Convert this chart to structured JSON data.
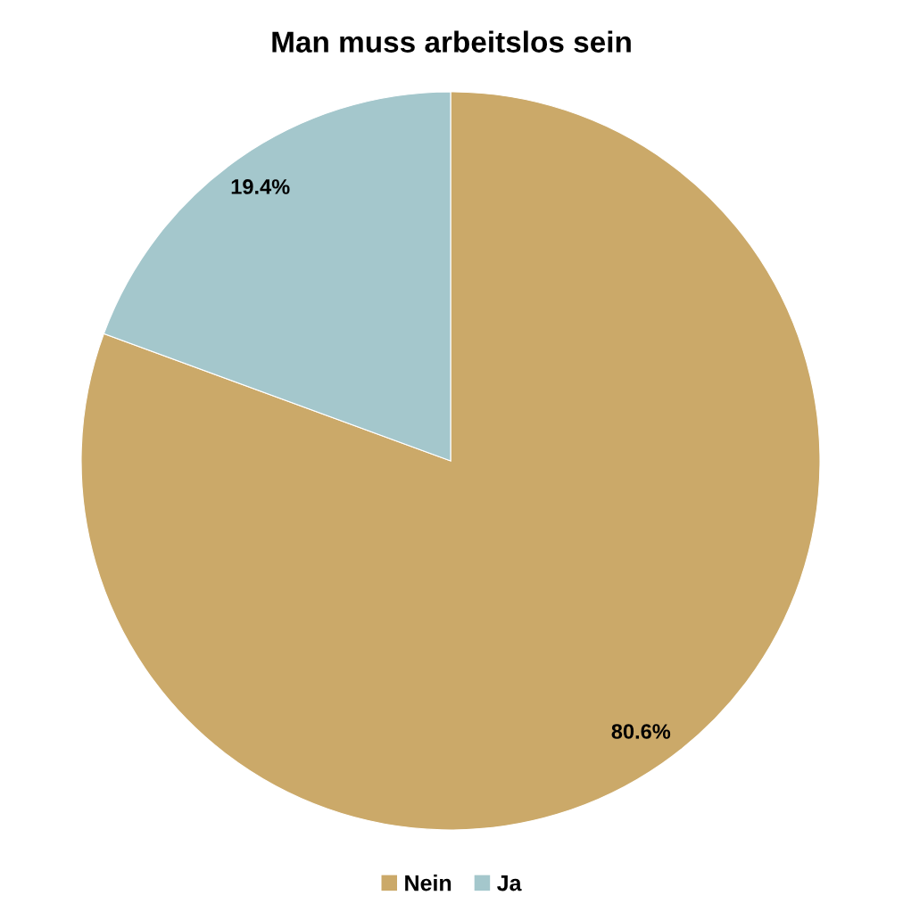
{
  "chart_data": {
    "type": "pie",
    "title": "Man muss arbeitslos sein",
    "categories": [
      "Nein",
      "Ja"
    ],
    "values": [
      80.6,
      19.4
    ],
    "colors": [
      "#cba969",
      "#a4c7cc"
    ],
    "value_labels": [
      "80.6%",
      "19.4%"
    ],
    "legend": "bottom"
  }
}
